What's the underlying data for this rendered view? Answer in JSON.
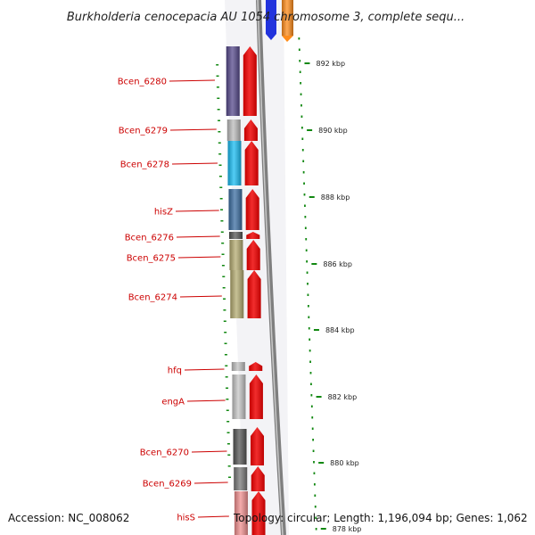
{
  "title": "Burkholderia cenocepacia AU 1054 chromosome 3, complete sequ...",
  "footer": {
    "accession": "Accession: NC_008062",
    "topology": "Topology: circular; Length: 1,196,094 bp; Genes: 1,062"
  },
  "scale_ticks": [
    "892 kbp",
    "890 kbp",
    "888 kbp",
    "886 kbp",
    "884 kbp",
    "882 kbp",
    "880 kbp",
    "878 kbp"
  ],
  "gene_labels": [
    "Bcen_6280",
    "Bcen_6279",
    "Bcen_6278",
    "hisZ",
    "Bcen_6276",
    "Bcen_6275",
    "Bcen_6274",
    "hfq",
    "engA",
    "Bcen_6270",
    "Bcen_6269",
    "hisS"
  ],
  "colors": {
    "label": "#cc0000",
    "arrow": "#ee0000",
    "tick": "#118811",
    "backbone": "#808080",
    "cog_blue": "#2233dd",
    "cog_orange": "#ff8c1a"
  }
}
